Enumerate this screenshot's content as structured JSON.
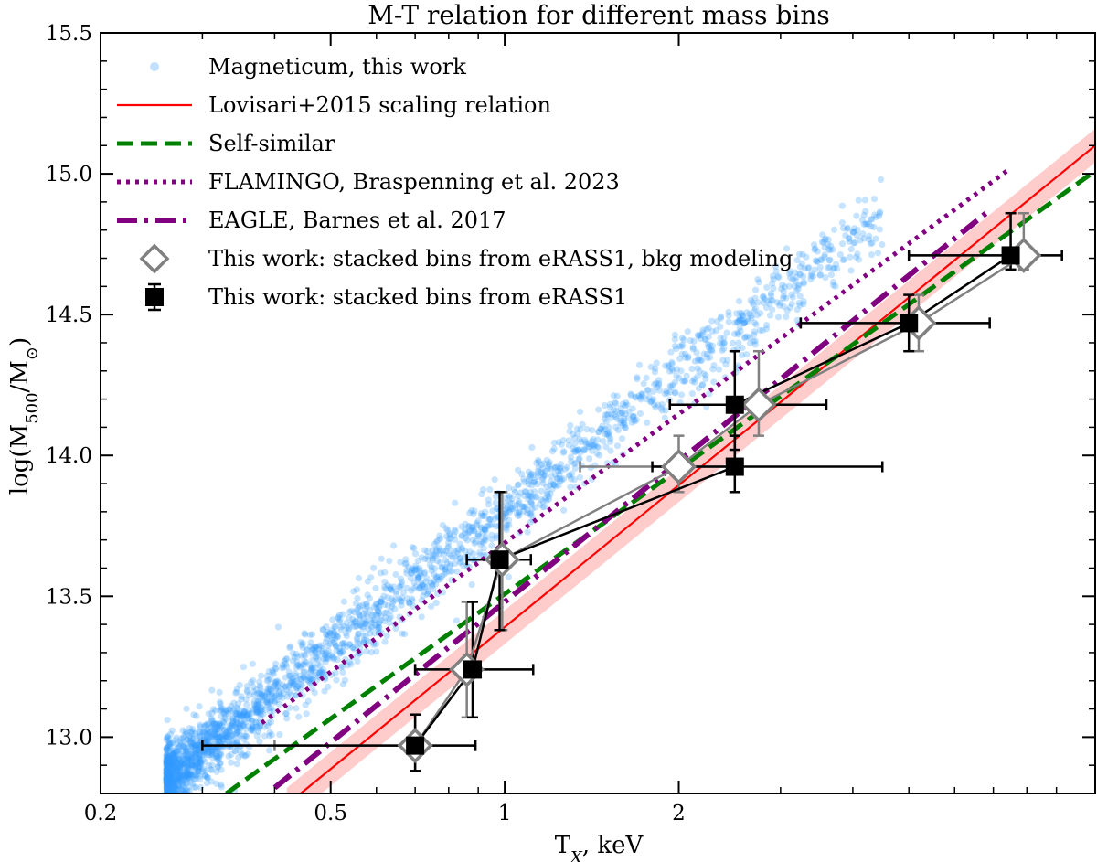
{
  "chart_data": {
    "type": "scatter",
    "title": "M-T relation for different mass bins",
    "xlabel": "T_X, keV",
    "ylabel": "log(M500/M⊙)",
    "x_scale": "log",
    "xlim": [
      0.2,
      10.5
    ],
    "ylim": [
      12.8,
      15.5
    ],
    "x_ticks": [
      0.2,
      0.5,
      1,
      2
    ],
    "x_tick_labels": [
      "0.2",
      "0.5",
      "1",
      "2"
    ],
    "y_ticks": [
      13.0,
      13.5,
      14.0,
      14.5,
      15.0,
      15.5
    ],
    "y_tick_labels": [
      "13.0",
      "13.5",
      "14.0",
      "14.5",
      "15.0",
      "15.5"
    ],
    "grid": false,
    "legend_position": "upper-left",
    "series": [
      {
        "name": "Magneticum, this work",
        "kind": "scatter-cloud",
        "color": "#3399ff",
        "x_range": [
          0.26,
          4.5
        ],
        "relation": {
          "slope": 1.62,
          "intercept": 13.8,
          "scatter": 0.06
        },
        "count": 2500
      },
      {
        "name": "Lovisari+2015 scaling relation",
        "kind": "line",
        "color": "#ff0000",
        "band_color": "#ff9999",
        "band_halfwidth": 0.06,
        "x": [
          0.42,
          10.5
        ],
        "y": [
          12.76,
          15.1
        ]
      },
      {
        "name": "Self-similar",
        "kind": "dashed-line",
        "color": "#008000",
        "x": [
          0.33,
          10.5
        ],
        "y": [
          12.8,
          15.01
        ]
      },
      {
        "name": "FLAMINGO, Braspenning et al. 2023",
        "kind": "dotted-line",
        "color": "#800080",
        "x": [
          0.38,
          7.5
        ],
        "y": [
          13.05,
          15.02
        ]
      },
      {
        "name": "EAGLE, Barnes et al. 2017",
        "kind": "dashdot-line",
        "color": "#800080",
        "x": [
          0.4,
          6.8
        ],
        "y": [
          12.82,
          14.86
        ]
      },
      {
        "name": "This work: stacked bins from eRASS1, bkg modeling",
        "kind": "errorbar-diamond",
        "color": "#808080",
        "points": [
          {
            "x": 0.7,
            "y": 12.97,
            "xerr": [
              0.4,
              0.89
            ],
            "yerr": [
              12.88,
              13.08
            ]
          },
          {
            "x": 0.86,
            "y": 13.24,
            "xerr": [
              0.7,
              1.12
            ],
            "yerr": [
              13.07,
              13.48
            ]
          },
          {
            "x": 0.99,
            "y": 13.63,
            "xerr": [
              0.86,
              1.11
            ],
            "yerr": [
              13.38,
              13.87
            ]
          },
          {
            "x": 2.0,
            "y": 13.96,
            "xerr": [
              1.35,
              2.45
            ],
            "yerr": [
              13.87,
              14.07
            ]
          },
          {
            "x": 2.75,
            "y": 14.18,
            "xerr": [
              1.93,
              3.6
            ],
            "yerr": [
              14.07,
              14.37
            ]
          },
          {
            "x": 5.2,
            "y": 14.47,
            "xerr": [
              3.25,
              6.9
            ],
            "yerr": [
              14.37,
              14.57
            ]
          },
          {
            "x": 7.9,
            "y": 14.71,
            "xerr": [
              5.0,
              9.2
            ],
            "yerr": [
              14.66,
              14.86
            ]
          }
        ]
      },
      {
        "name": "This work: stacked bins from eRASS1",
        "kind": "errorbar-square",
        "color": "#000000",
        "points": [
          {
            "x": 0.7,
            "y": 12.97,
            "xerr": [
              0.3,
              0.89
            ],
            "yerr": [
              12.88,
              13.08
            ]
          },
          {
            "x": 0.88,
            "y": 13.24,
            "xerr": [
              0.7,
              1.12
            ],
            "yerr": [
              13.07,
              13.48
            ]
          },
          {
            "x": 0.98,
            "y": 13.63,
            "xerr": [
              0.86,
              1.11
            ],
            "yerr": [
              13.38,
              13.87
            ]
          },
          {
            "x": 2.5,
            "y": 13.96,
            "xerr": [
              1.8,
              4.5
            ],
            "yerr": [
              13.87,
              14.07
            ]
          },
          {
            "x": 2.5,
            "y": 14.18,
            "xerr": [
              1.93,
              3.6
            ],
            "yerr": [
              14.02,
              14.37
            ]
          },
          {
            "x": 5.0,
            "y": 14.47,
            "xerr": [
              3.25,
              6.9
            ],
            "yerr": [
              14.37,
              14.57
            ]
          },
          {
            "x": 7.5,
            "y": 14.71,
            "xerr": [
              5.0,
              9.2
            ],
            "yerr": [
              14.66,
              14.86
            ]
          }
        ]
      }
    ]
  }
}
